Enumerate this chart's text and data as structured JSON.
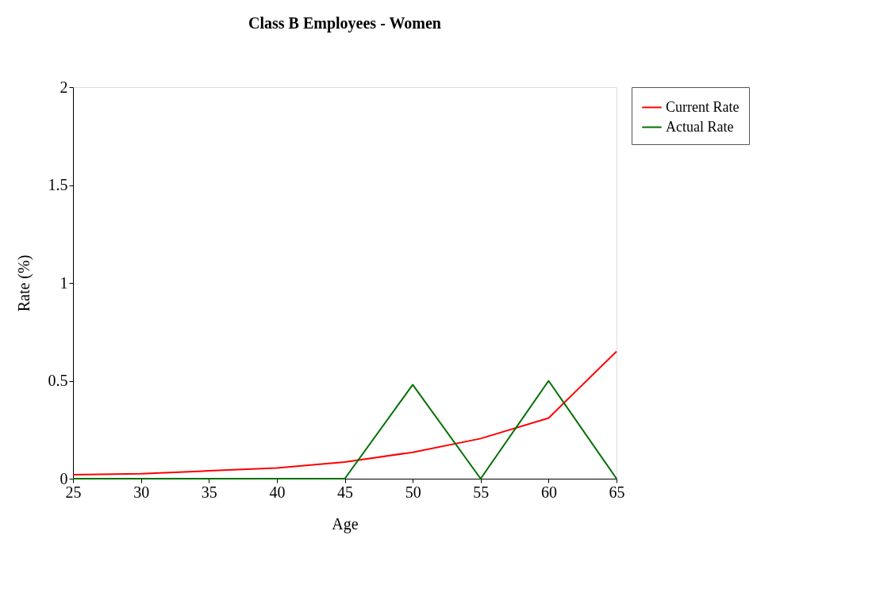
{
  "chart_data": {
    "type": "line",
    "title": "Class B Employees - Women",
    "xlabel": "Age",
    "ylabel": "Rate (%)",
    "x": [
      25,
      30,
      35,
      40,
      45,
      50,
      55,
      60,
      65
    ],
    "series": [
      {
        "name": "Current Rate",
        "color": "#ff0000",
        "values": [
          0.02,
          0.025,
          0.04,
          0.055,
          0.085,
          0.135,
          0.205,
          0.31,
          0.65
        ]
      },
      {
        "name": "Actual Rate",
        "color": "#007000",
        "values": [
          0,
          0,
          0,
          0,
          0,
          0.48,
          0,
          0.5,
          0
        ]
      }
    ],
    "xlim": [
      25,
      65
    ],
    "xticks": [
      25,
      30,
      35,
      40,
      45,
      50,
      55,
      60,
      65
    ],
    "ylim": [
      0,
      2
    ],
    "yticks": [
      0,
      0.5,
      1,
      1.5,
      2
    ],
    "grid": false,
    "legend": "right",
    "marker": "none",
    "line_style": "solid"
  }
}
